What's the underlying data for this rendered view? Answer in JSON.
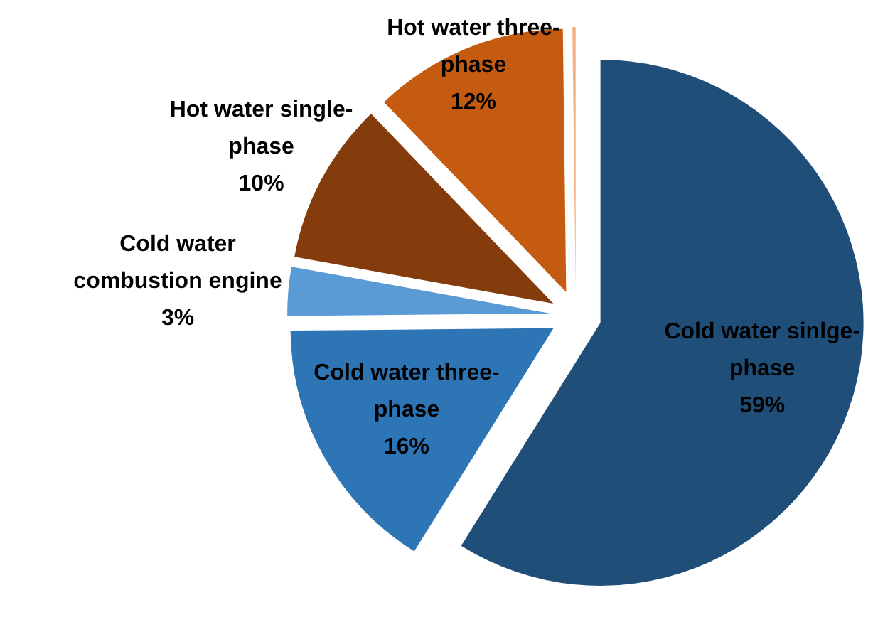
{
  "chart_data": {
    "type": "pie",
    "categories": [
      "Cold water sinlge-phase",
      "Cold water three-phase",
      "Cold water combustion engine",
      "Hot water single-phase",
      "Hot water three-phase",
      null
    ],
    "values": [
      59,
      16,
      3,
      10,
      12,
      0.2
    ],
    "colors": [
      "#1f4e79",
      "#2e75b6",
      "#5b9bd5",
      "#843c0c",
      "#c55a11",
      "#f4b183"
    ],
    "value_labels": [
      "59%",
      "16%",
      "3%",
      "10%",
      "12%",
      null
    ]
  }
}
